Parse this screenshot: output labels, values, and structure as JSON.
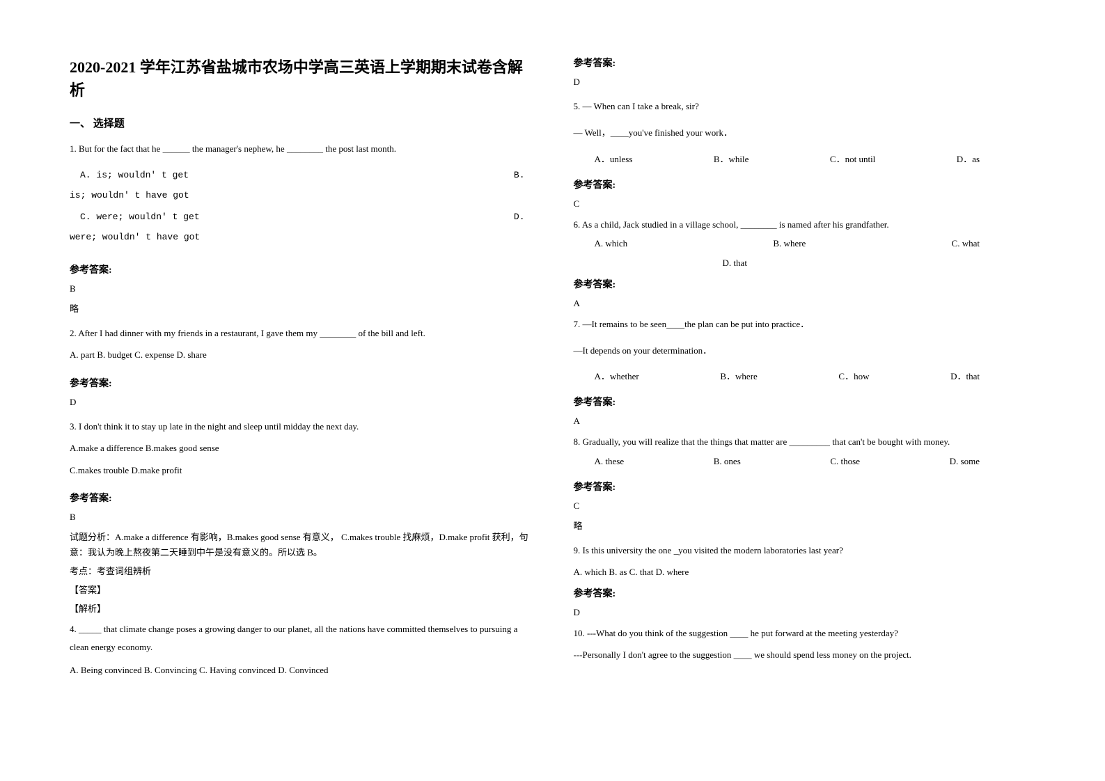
{
  "title": "2020-2021 学年江苏省盐城市农场中学高三英语上学期期末试卷含解析",
  "section1": "一、 选择题",
  "answer_label": "参考答案:",
  "note_brief": "略",
  "q1": {
    "text": "1. But for the fact that he ______ the manager's nephew, he ________ the post last month.",
    "optA": "A. is; wouldn' t get",
    "optB": "B. is; wouldn' t have got",
    "optC": "C. were; wouldn' t get",
    "optD": "D. were; wouldn' t have got",
    "answer": "B"
  },
  "q2": {
    "text": "  2. After I had dinner with my friends in a restaurant, I gave them my ________ of the bill and left.",
    "options": "  A. part        B. budget      C. expense     D. share",
    "answer": "D"
  },
  "q3": {
    "text": "3. I don't think it    to stay up late in the night and sleep until midday the next day.",
    "line2": "A.make a difference  B.makes good sense",
    "line3": "C.makes trouble   D.make profit",
    "answer": "B",
    "analysis1": "试题分析：A.make a difference 有影响，B.makes good sense 有意义，  C.makes trouble 找麻烦，D.make profit 获利，句意：我认为晚上熬夜第二天睡到中午是没有意义的。所以选 B。",
    "analysis2": "考点：考查词组辨析",
    "analysis3": "【答案】",
    "analysis4": "【解析】"
  },
  "q4": {
    "text": "4. _____ that climate change poses a growing danger to our planet, all the nations have committed themselves to pursuing a clean energy economy.",
    "options": "A. Being convinced     B. Convincing    C. Having convinced    D. Convinced",
    "answer": "D"
  },
  "q5": {
    "text": "5. — When can I take a break, sir?",
    "text2": "— Well，____you've finished your work．",
    "optA": "A．unless",
    "optB": "B．while",
    "optC": "C．not until",
    "optD": "D．as",
    "answer": "C"
  },
  "q6": {
    "text": "6. As a child, Jack studied in a village school, ________ is named after his grandfather.",
    "optA": "A.   which",
    "optB": "B. where",
    "optC": "C. what",
    "optD": "D. that",
    "answer": "A"
  },
  "q7": {
    "text": "7. —It remains to be seen____the plan can be put into practice．",
    "text2": "—It depends on your determination．",
    "optA": "A．whether",
    "optB": "B．where",
    "optC": "C．how",
    "optD": "D．that",
    "answer": "A"
  },
  "q8": {
    "text": "8. Gradually, you will realize that the things that matter are _________ that can't be bought with money.",
    "optA": "A. these",
    "optB": "B. ones",
    "optC": "C. those",
    "optD": "D. some",
    "answer": "C"
  },
  "q9": {
    "text": "9. Is this university the one _you visited the modern laboratories last year?",
    "options": "   A.  which   B.  as   C.  that   D.  where",
    "answer": "D"
  },
  "q10": {
    "text": "10. ---What do you think of the suggestion ____ he put forward at the meeting yesterday?",
    "text2": "   ---Personally I don't agree to the suggestion ____ we should spend less money on the project."
  }
}
